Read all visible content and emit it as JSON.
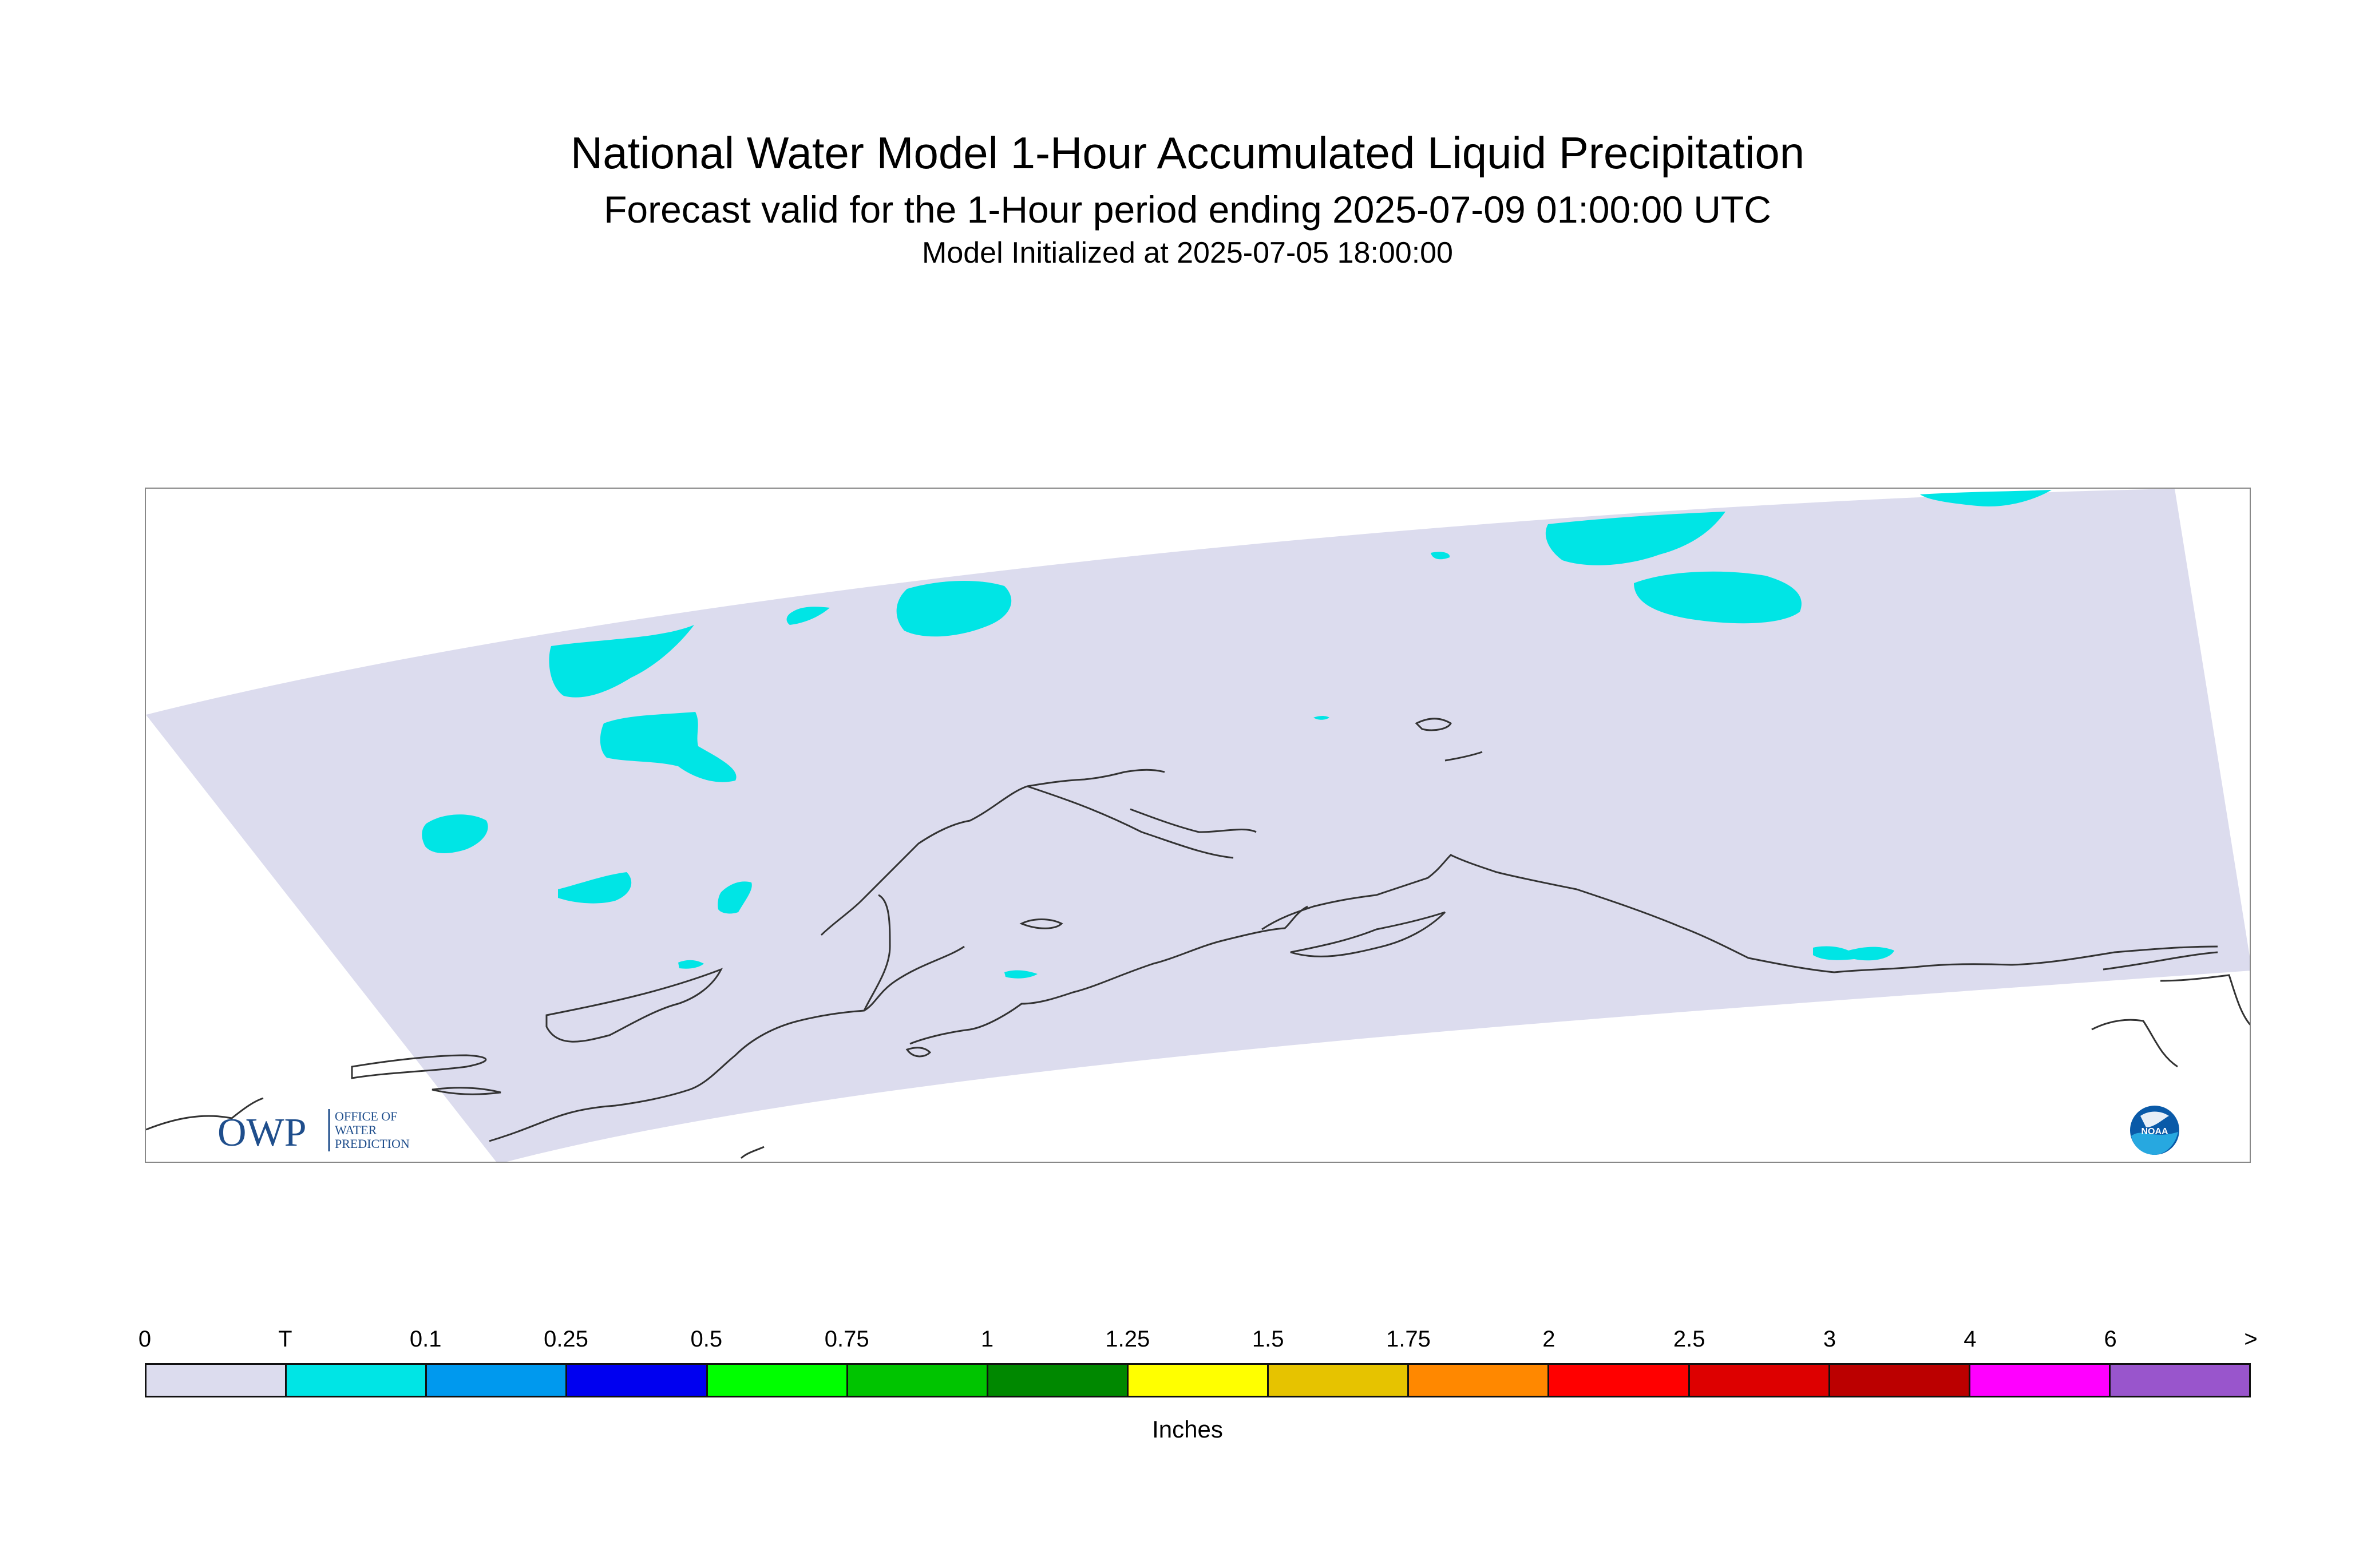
{
  "title": "National Water Model 1-Hour Accumulated Liquid Precipitation",
  "subtitle": "Forecast valid for the 1-Hour period ending 2025-07-09 01:00:00 UTC",
  "init_line": "Model Initialized at 2025-07-05 18:00:00",
  "map": {
    "region": "Alaska",
    "domain_color": "#dcdcee",
    "precip_color": "#00e5e5",
    "coastline_color": "#333333"
  },
  "logos": {
    "owp": {
      "mark": "OWP",
      "text_lines": [
        "OFFICE OF",
        "WATER",
        "PREDICTION"
      ]
    },
    "noaa": {
      "text": "NOAA"
    }
  },
  "legend": {
    "unit": "Inches",
    "labels": [
      "0",
      "T",
      "0.1",
      "0.25",
      "0.5",
      "0.75",
      "1",
      "1.25",
      "1.5",
      "1.75",
      "2",
      "2.5",
      "3",
      "4",
      "6",
      ">"
    ],
    "colors": [
      "#dcdcee",
      "#00e5e5",
      "#0099ee",
      "#0000f0",
      "#00ff00",
      "#00c400",
      "#008800",
      "#ffff00",
      "#e6c300",
      "#ff8800",
      "#ff0000",
      "#dd0000",
      "#bb0000",
      "#ff00ff",
      "#9955cc"
    ]
  }
}
